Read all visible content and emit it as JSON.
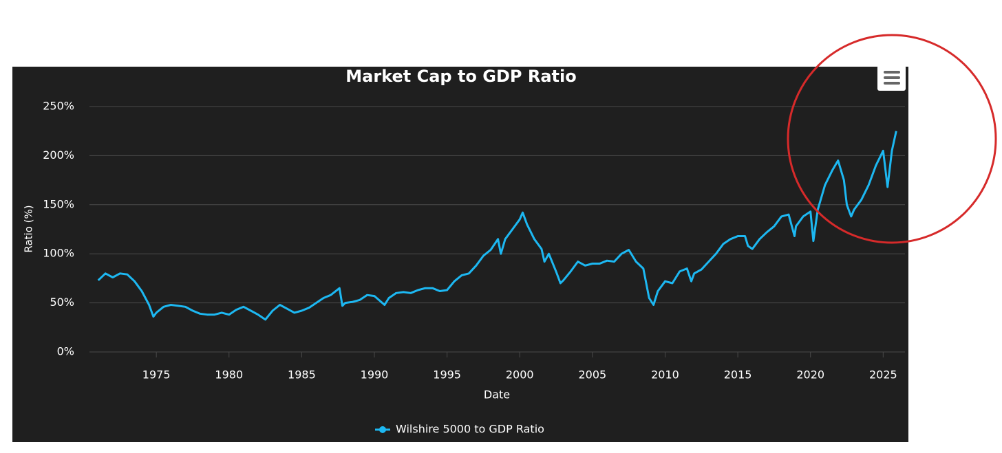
{
  "chart_data": {
    "type": "line",
    "title": "Market Cap to GDP Ratio",
    "x_label": "Date",
    "y_label": "Ratio (%)",
    "x": [
      1971,
      1971.5,
      1972,
      1972.5,
      1973,
      1973.5,
      1974,
      1974.5,
      1974.8,
      1975,
      1975.5,
      1976,
      1976.5,
      1977,
      1977.5,
      1978,
      1978.5,
      1979,
      1979.5,
      1980,
      1980.5,
      1981,
      1981.5,
      1982,
      1982.5,
      1983,
      1983.5,
      1984,
      1984.5,
      1985,
      1985.5,
      1986,
      1986.5,
      1987,
      1987.6,
      1987.8,
      1988,
      1988.5,
      1989,
      1989.5,
      1990,
      1990.7,
      1991,
      1991.5,
      1992,
      1992.5,
      1993,
      1993.5,
      1994,
      1994.5,
      1995,
      1995.5,
      1996,
      1996.5,
      1997,
      1997.5,
      1998,
      1998.5,
      1998.7,
      1999,
      1999.5,
      2000,
      2000.2,
      2000.5,
      2001,
      2001.5,
      2001.7,
      2002,
      2002.5,
      2002.8,
      2003,
      2003.5,
      2004,
      2004.5,
      2005,
      2005.5,
      2006,
      2006.5,
      2007,
      2007.5,
      2008,
      2008.5,
      2008.9,
      2009.2,
      2009.5,
      2010,
      2010.5,
      2011,
      2011.5,
      2011.8,
      2012,
      2012.5,
      2013,
      2013.5,
      2014,
      2014.5,
      2015,
      2015.5,
      2015.7,
      2016,
      2016.5,
      2017,
      2017.5,
      2018,
      2018.5,
      2018.9,
      2019,
      2019.5,
      2020,
      2020.2,
      2020.5,
      2021,
      2021.5,
      2021.9,
      2022.3,
      2022.5,
      2022.8,
      2023,
      2023.5,
      2024,
      2024.5,
      2025,
      2025.3,
      2025.6,
      2025.9
    ],
    "series": [
      {
        "name": "Wilshire 5000 to GDP Ratio",
        "color": "#1db8f2",
        "values": [
          73,
          80,
          76,
          80,
          79,
          72,
          62,
          48,
          36,
          40,
          46,
          48,
          47,
          46,
          42,
          39,
          38,
          38,
          40,
          38,
          43,
          46,
          42,
          38,
          33,
          42,
          48,
          44,
          40,
          42,
          45,
          50,
          55,
          58,
          65,
          47,
          50,
          51,
          53,
          58,
          57,
          48,
          55,
          60,
          61,
          60,
          63,
          65,
          65,
          62,
          63,
          72,
          78,
          80,
          88,
          98,
          104,
          115,
          100,
          115,
          125,
          135,
          142,
          130,
          115,
          105,
          92,
          100,
          82,
          70,
          73,
          82,
          92,
          88,
          90,
          90,
          93,
          92,
          100,
          104,
          92,
          85,
          55,
          48,
          62,
          72,
          70,
          82,
          85,
          72,
          80,
          84,
          92,
          100,
          110,
          115,
          118,
          118,
          108,
          105,
          115,
          122,
          128,
          138,
          140,
          118,
          128,
          138,
          143,
          113,
          145,
          170,
          185,
          195,
          175,
          150,
          138,
          145,
          155,
          170,
          190,
          205,
          168,
          205,
          225
        ]
      }
    ],
    "xlim": [
      1970.4,
      2026.5
    ],
    "xticks": [
      1975,
      1980,
      1985,
      1990,
      1995,
      2000,
      2005,
      2010,
      2015,
      2020,
      2025
    ],
    "ylim": [
      0,
      250
    ],
    "yticks": [
      {
        "value": 0,
        "label": "0%"
      },
      {
        "value": 50,
        "label": "50%"
      },
      {
        "value": 100,
        "label": "100%"
      },
      {
        "value": 150,
        "label": "150%"
      },
      {
        "value": 200,
        "label": "200%"
      },
      {
        "value": 250,
        "label": "250%"
      }
    ],
    "grid": true,
    "legend": "bottom"
  }
}
